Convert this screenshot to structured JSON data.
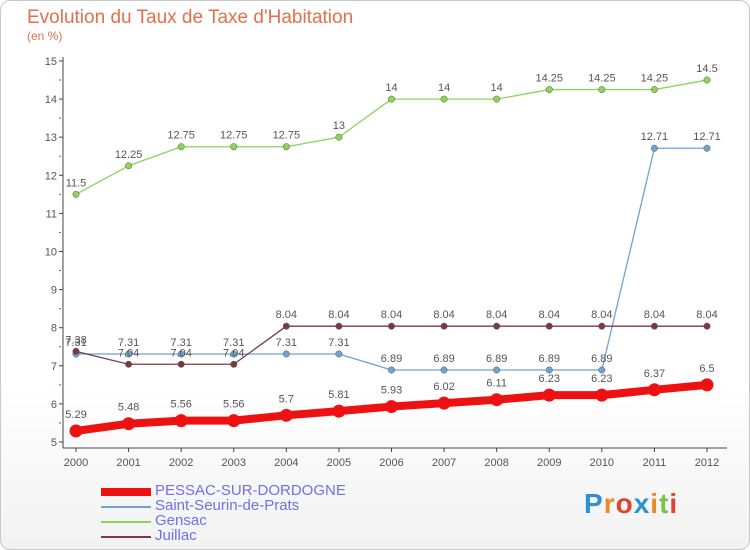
{
  "title": "Evolution du Taux de Taxe d'Habitation",
  "unit_label": "(en %)",
  "brand": {
    "text": "Proxiti",
    "colors": [
      "#2f8fd0",
      "#e98a2b",
      "#e0442f",
      "#2f8fd0",
      "#e98a2b",
      "#7cc243",
      "#e0442f"
    ]
  },
  "colors": {
    "background": "#ffffff",
    "axis": "#444444",
    "title": "#e2704a",
    "legend_text": "#6f6ff0"
  },
  "chart_data": {
    "type": "line",
    "title": "Evolution du Taux de Taxe d'Habitation",
    "ylabel": "(en %)",
    "xlabel": "",
    "ylim": [
      5,
      15
    ],
    "yticks": [
      5,
      6,
      7,
      8,
      9,
      10,
      11,
      12,
      13,
      14,
      15
    ],
    "x": [
      "2000",
      "2001",
      "2002",
      "2003",
      "2004",
      "2005",
      "2006",
      "2007",
      "2008",
      "2009",
      "2010",
      "2011",
      "2012"
    ],
    "grid": false,
    "legend_position": "bottom-left",
    "series": [
      {
        "name": "PESSAC-SUR-DORDOGNE",
        "color": "#ee1111",
        "bold": true,
        "values": [
          5.29,
          5.48,
          5.56,
          5.56,
          5.7,
          5.81,
          5.93,
          6.02,
          6.11,
          6.23,
          6.23,
          6.37,
          6.5
        ],
        "labels": [
          "5.29",
          "5.48",
          "5.56",
          "5.56",
          "5.7",
          "5.81",
          "5.93",
          "6.02",
          "6.11",
          "6.23",
          "6.23",
          "6.37",
          "6.5"
        ]
      },
      {
        "name": "Saint-Seurin-de-Prats",
        "color": "#6ea3d2",
        "bold": false,
        "values": [
          7.31,
          7.31,
          7.31,
          7.31,
          7.31,
          7.31,
          6.89,
          6.89,
          6.89,
          6.89,
          6.89,
          12.71,
          12.71
        ],
        "labels": [
          "7.31",
          "7.31",
          "7.31",
          "7.31",
          "7.31",
          "7.31",
          "6.89",
          "6.89",
          "6.89",
          "6.89",
          "6.89",
          "12.71",
          "12.71"
        ]
      },
      {
        "name": "Gensac",
        "color": "#8fd45a",
        "bold": false,
        "values": [
          11.5,
          12.25,
          12.75,
          12.75,
          12.75,
          13,
          14,
          14,
          14,
          14.25,
          14.25,
          14.25,
          14.5
        ],
        "labels": [
          "11.5",
          "12.25",
          "12.75",
          "12.75",
          "12.75",
          "13",
          "14",
          "14",
          "14",
          "14.25",
          "14.25",
          "14.25",
          "14.5"
        ]
      },
      {
        "name": "Juillac",
        "color": "#7a3a44",
        "bold": false,
        "values": [
          7.38,
          7.04,
          7.04,
          7.04,
          8.04,
          8.04,
          8.04,
          8.04,
          8.04,
          8.04,
          8.04,
          8.04,
          8.04
        ],
        "labels": [
          "7.38",
          "7.04",
          "7.04",
          "7.04",
          "8.04",
          "8.04",
          "8.04",
          "8.04",
          "8.04",
          "8.04",
          "8.04",
          "8.04",
          "8.04"
        ]
      }
    ]
  }
}
